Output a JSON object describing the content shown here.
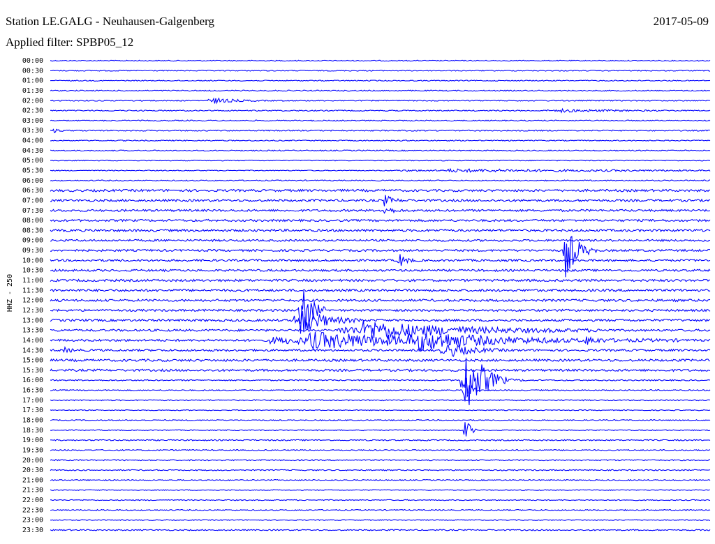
{
  "header": {
    "station": "Station LE.GALG - Neuhausen-Galgenberg",
    "date": "2017-05-09",
    "filter": "Applied filter: SPBP05_12"
  },
  "axis_label": "HHZ - 250",
  "rows": [
    "00:00",
    "00:30",
    "01:00",
    "01:30",
    "02:00",
    "02:30",
    "03:00",
    "03:30",
    "04:00",
    "04:30",
    "05:00",
    "05:30",
    "06:00",
    "06:30",
    "07:00",
    "07:30",
    "08:00",
    "08:30",
    "09:00",
    "09:30",
    "10:00",
    "10:30",
    "11:00",
    "11:30",
    "12:00",
    "12:30",
    "13:00",
    "13:30",
    "14:00",
    "14:30",
    "15:00",
    "15:30",
    "16:00",
    "16:30",
    "17:00",
    "17:30",
    "18:00",
    "18:30",
    "19:00",
    "19:30",
    "20:00",
    "20:30",
    "21:00",
    "21:30",
    "22:00",
    "22:30",
    "23:00",
    "23:30"
  ]
}
